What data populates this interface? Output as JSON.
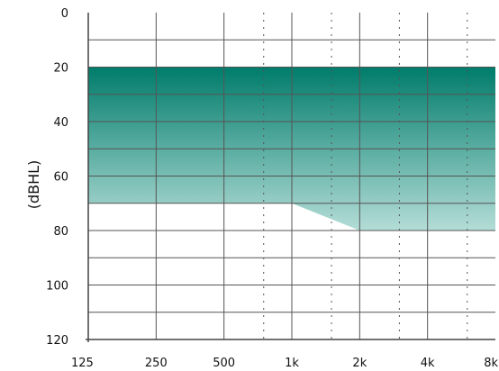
{
  "chart_data": {
    "type": "area",
    "title": "",
    "ylabel": "(dBHL)",
    "xlabel": "",
    "x_ticks": [
      "125",
      "250",
      "500",
      "1k",
      "2k",
      "4k",
      "8k"
    ],
    "x_values": [
      125,
      250,
      500,
      1000,
      2000,
      4000,
      8000
    ],
    "x_scale": "log",
    "y_ticks": [
      0,
      20,
      40,
      60,
      80,
      100,
      120
    ],
    "ylim": [
      0,
      120
    ],
    "y_inverted": true,
    "y_minor_step": 10,
    "x_dotted_intermediates": [
      750,
      1500,
      3000,
      6000
    ],
    "grid": true,
    "band": {
      "frequencies": [
        125,
        1000,
        2000,
        8000
      ],
      "upper_db": [
        20,
        20,
        20,
        20
      ],
      "lower_db": [
        70,
        70,
        80,
        80
      ]
    },
    "colors": {
      "band_top": "#007c6b",
      "band_bottom": "#b4ddd7",
      "grid_line": "#555555",
      "axis": "#444444"
    }
  }
}
